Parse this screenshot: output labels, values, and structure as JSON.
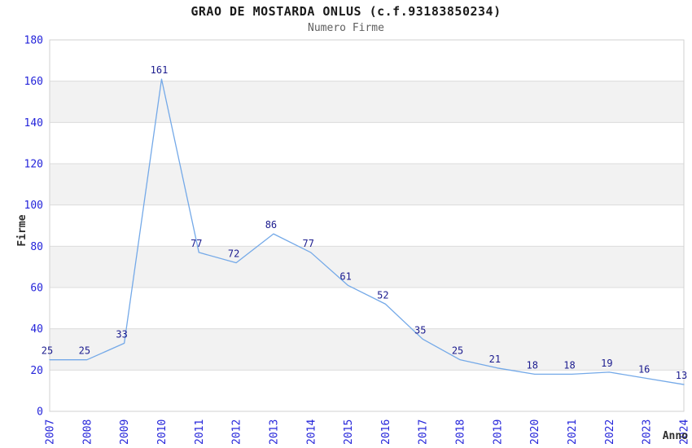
{
  "chart_data": {
    "type": "line",
    "title": "GRAO DE MOSTARDA ONLUS (c.f.93183850234)",
    "subtitle": "Numero Firme",
    "xlabel": "Anno",
    "ylabel": "Firme",
    "categories": [
      "2007",
      "2008",
      "2009",
      "2010",
      "2011",
      "2012",
      "2013",
      "2014",
      "2015",
      "2016",
      "2017",
      "2018",
      "2019",
      "2020",
      "2021",
      "2022",
      "2023",
      "2024"
    ],
    "values": [
      25,
      25,
      33,
      161,
      77,
      72,
      86,
      77,
      61,
      52,
      35,
      25,
      21,
      18,
      18,
      19,
      16,
      13
    ],
    "ylim": [
      0,
      180
    ],
    "ytick_step": 20,
    "grid": true,
    "legend": "none",
    "point_labels_shown": true,
    "x_tick_rotation_degrees": -90,
    "band_pattern": "alternating horizontal stripes",
    "colors": {
      "line": "#74a9e8",
      "point_label": "#1b1b8e",
      "tick_label": "#2424da",
      "axis_title": "#2e2e2e",
      "title": "#1a1a1a",
      "subtitle": "#606060",
      "band": "#f2f2f2",
      "grid_line": "#dcdcdc",
      "border": "#d2d2d2",
      "background": "#ffffff"
    }
  }
}
